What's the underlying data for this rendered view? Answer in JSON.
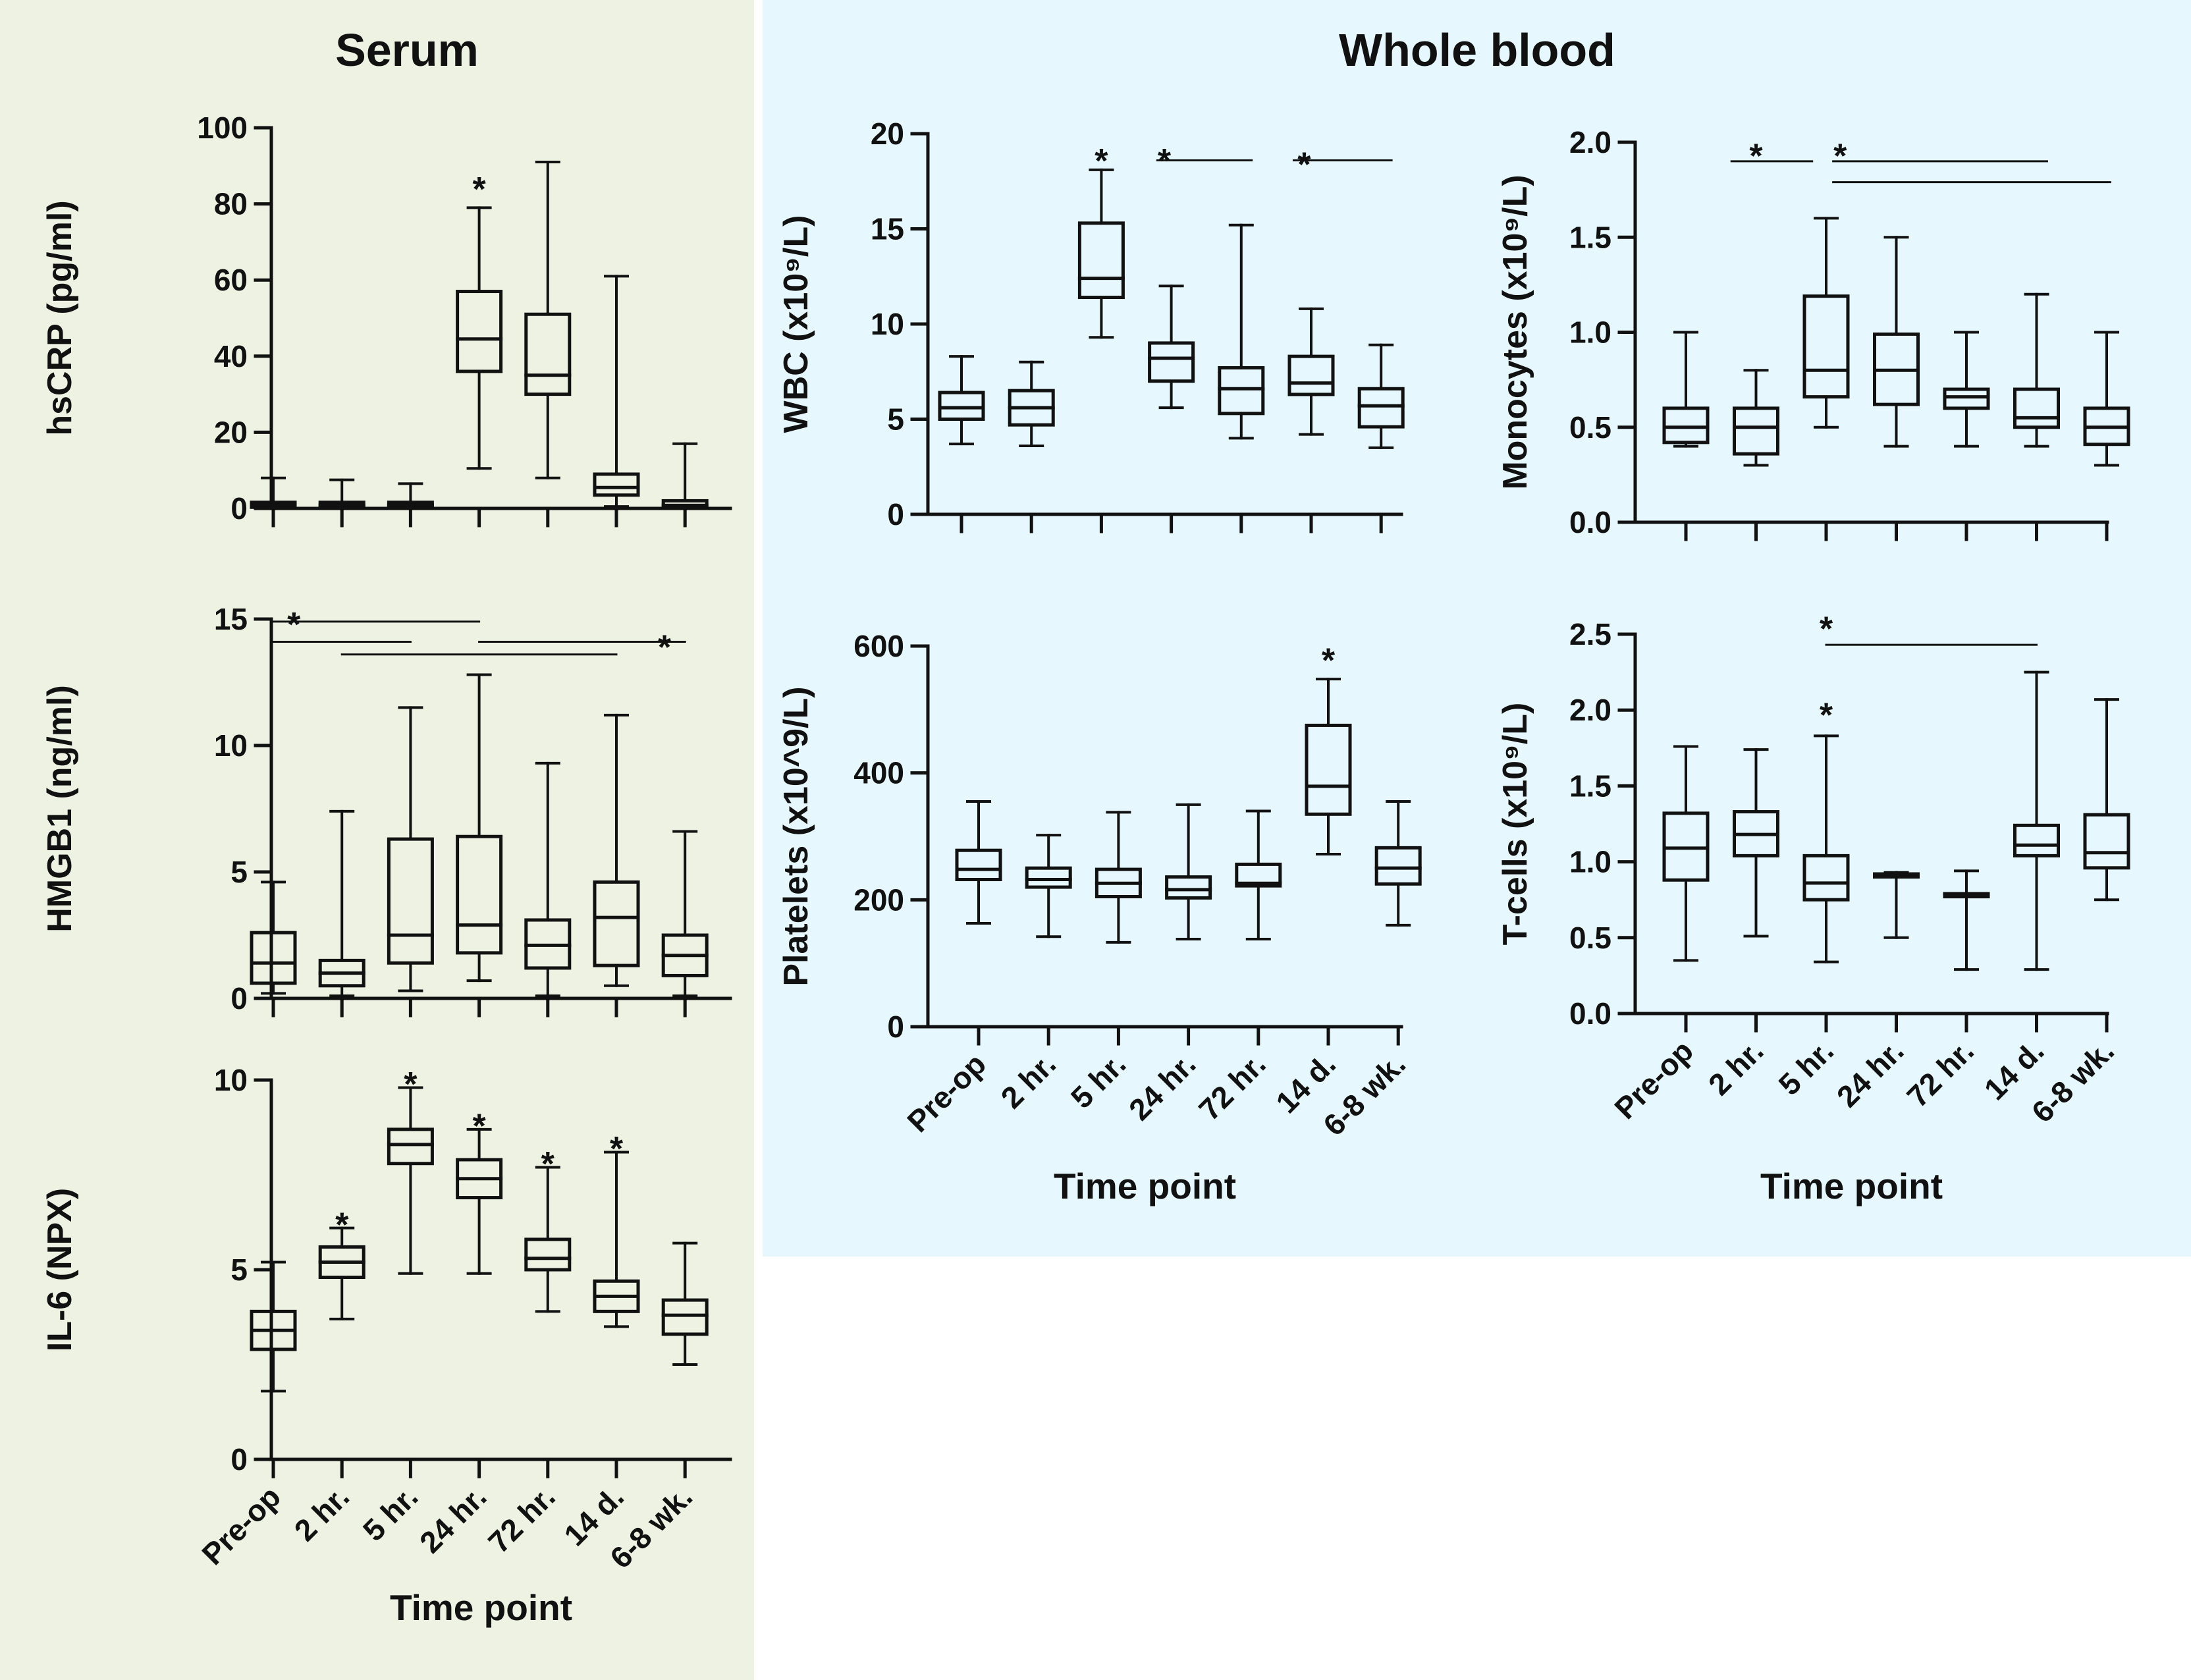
{
  "panels": {
    "serum": {
      "title": "Serum",
      "color": "#edf2e3"
    },
    "whole_blood": {
      "title": "Whole blood",
      "color": "#e6f8fd"
    }
  },
  "chart_data": [
    {
      "id": "hscrp",
      "type": "box",
      "panel": "serum",
      "ylabel": "hsCRP (pg/ml)",
      "xlabel": "",
      "ylim": [
        0,
        100
      ],
      "yticks": [
        0,
        20,
        40,
        60,
        80,
        100
      ],
      "ytick_labels": [
        "0",
        "20",
        "40",
        "60",
        "80",
        "100"
      ],
      "categories": [
        "Pre-op",
        "2 hr.",
        "5 hr.",
        "24 hr.",
        "72 hr.",
        "14 d.",
        "6-8 wk."
      ],
      "show_category_labels": false,
      "boxes": [
        {
          "min": 0,
          "q1": 0.3,
          "median": 0.8,
          "q3": 1.6,
          "max": 8
        },
        {
          "min": 0,
          "q1": 0.3,
          "median": 0.8,
          "q3": 1.6,
          "max": 7.5
        },
        {
          "min": 0,
          "q1": 0.3,
          "median": 0.8,
          "q3": 1.6,
          "max": 6.5
        },
        {
          "min": 10.5,
          "q1": 36,
          "median": 44.5,
          "q3": 57,
          "max": 79
        },
        {
          "min": 8,
          "q1": 30,
          "median": 35,
          "q3": 51,
          "max": 91
        },
        {
          "min": 0.5,
          "q1": 3.5,
          "median": 5.5,
          "q3": 9,
          "max": 61
        },
        {
          "min": 0,
          "q1": 0.3,
          "median": 0.8,
          "q3": 2,
          "max": 17
        }
      ],
      "stars": [
        {
          "index": 3,
          "value": 86,
          "text": "*"
        }
      ],
      "brackets": []
    },
    {
      "id": "hmgb1",
      "type": "box",
      "panel": "serum",
      "ylabel": "HMGB1 (ng/ml)",
      "xlabel": "",
      "ylim": [
        0,
        15
      ],
      "yticks": [
        0,
        5,
        10,
        15
      ],
      "ytick_labels": [
        "0",
        "5",
        "10",
        "15"
      ],
      "categories": [
        "Pre-op",
        "2 hr.",
        "5 hr.",
        "24 hr.",
        "72 hr.",
        "14 d.",
        "6-8 wk."
      ],
      "show_category_labels": false,
      "boxes": [
        {
          "min": 0.2,
          "q1": 0.6,
          "median": 1.4,
          "q3": 2.6,
          "max": 4.6
        },
        {
          "min": 0.1,
          "q1": 0.5,
          "median": 1,
          "q3": 1.5,
          "max": 7.4
        },
        {
          "min": 0.3,
          "q1": 1.4,
          "median": 2.5,
          "q3": 6.3,
          "max": 11.5
        },
        {
          "min": 0.7,
          "q1": 1.8,
          "median": 2.9,
          "q3": 6.4,
          "max": 12.8
        },
        {
          "min": 0.1,
          "q1": 1.2,
          "median": 2.1,
          "q3": 3.1,
          "max": 9.3
        },
        {
          "min": 0.5,
          "q1": 1.3,
          "median": 3.2,
          "q3": 4.6,
          "max": 11.2
        },
        {
          "min": 0.1,
          "q1": 0.9,
          "median": 1.7,
          "q3": 2.5,
          "max": 6.6
        }
      ],
      "stars": [
        {
          "index": 0.3,
          "value": 15.1,
          "text": "*"
        },
        {
          "index": 5.7,
          "value": 14.2,
          "text": "*"
        }
      ],
      "brackets": [
        {
          "from": 0,
          "to": 3,
          "value": 14.9
        },
        {
          "from": 0,
          "to": 2,
          "value": 14.1
        },
        {
          "from": 3,
          "to": 6,
          "value": 14.1
        },
        {
          "from": 1,
          "to": 5,
          "value": 13.6
        }
      ]
    },
    {
      "id": "il6",
      "type": "box",
      "panel": "serum",
      "ylabel": "IL-6 (NPX)",
      "xlabel": "Time point",
      "ylim": [
        0,
        10
      ],
      "yticks": [
        0,
        5,
        10
      ],
      "ytick_labels": [
        "0",
        "5",
        "10"
      ],
      "categories": [
        "Pre-op",
        "2 hr.",
        "5 hr.",
        "24 hr.",
        "72 hr.",
        "14 d.",
        "6-8 wk."
      ],
      "show_category_labels": true,
      "boxes": [
        {
          "min": 1.8,
          "q1": 2.9,
          "median": 3.4,
          "q3": 3.9,
          "max": 5.2
        },
        {
          "min": 3.7,
          "q1": 4.8,
          "median": 5.2,
          "q3": 5.6,
          "max": 6.1
        },
        {
          "min": 4.9,
          "q1": 7.8,
          "median": 8.3,
          "q3": 8.7,
          "max": 9.8
        },
        {
          "min": 4.9,
          "q1": 6.9,
          "median": 7.4,
          "q3": 7.9,
          "max": 8.7
        },
        {
          "min": 3.9,
          "q1": 5,
          "median": 5.3,
          "q3": 5.8,
          "max": 7.7
        },
        {
          "min": 3.5,
          "q1": 3.9,
          "median": 4.3,
          "q3": 4.7,
          "max": 8.1
        },
        {
          "min": 2.5,
          "q1": 3.3,
          "median": 3.8,
          "q3": 4.2,
          "max": 5.7
        }
      ],
      "stars": [
        {
          "index": 1,
          "value": 6.4,
          "text": "*"
        },
        {
          "index": 2,
          "value": 10.1,
          "text": "*"
        },
        {
          "index": 3,
          "value": 9.0,
          "text": "*"
        },
        {
          "index": 4,
          "value": 8.0,
          "text": "*"
        },
        {
          "index": 5,
          "value": 8.4,
          "text": "*"
        }
      ],
      "brackets": []
    },
    {
      "id": "wbc",
      "type": "box",
      "panel": "whole_blood",
      "ylabel": "WBC (x10⁹/L)",
      "xlabel": "",
      "ylim": [
        0,
        20
      ],
      "yticks": [
        0,
        5,
        10,
        15,
        20
      ],
      "ytick_labels": [
        "0",
        "5",
        "10",
        "15",
        "20"
      ],
      "categories": [
        "Pre-op",
        "2 hr.",
        "5 hr.",
        "24 hr.",
        "72 hr.",
        "14 d.",
        "6-8 wk."
      ],
      "show_category_labels": false,
      "boxes": [
        {
          "min": 3.7,
          "q1": 5,
          "median": 5.6,
          "q3": 6.4,
          "max": 8.3
        },
        {
          "min": 3.6,
          "q1": 4.7,
          "median": 5.6,
          "q3": 6.5,
          "max": 8
        },
        {
          "min": 9.3,
          "q1": 11.4,
          "median": 12.4,
          "q3": 15.3,
          "max": 18.1
        },
        {
          "min": 5.6,
          "q1": 7,
          "median": 8.2,
          "q3": 9,
          "max": 12
        },
        {
          "min": 4,
          "q1": 5.3,
          "median": 6.6,
          "q3": 7.7,
          "max": 15.2
        },
        {
          "min": 4.2,
          "q1": 6.3,
          "median": 6.9,
          "q3": 8.3,
          "max": 10.8
        },
        {
          "min": 3.5,
          "q1": 4.6,
          "median": 5.7,
          "q3": 6.6,
          "max": 8.9
        }
      ],
      "stars": [
        {
          "index": 2,
          "value": 19.0,
          "text": "*"
        },
        {
          "index": 2.9,
          "value": 19.0,
          "text": "*"
        },
        {
          "index": 4.9,
          "value": 18.8,
          "text": "*"
        }
      ],
      "brackets": [
        {
          "from": 2.8,
          "to": 4.15,
          "value": 18.6
        },
        {
          "from": 4.75,
          "to": 6.15,
          "value": 18.6
        }
      ]
    },
    {
      "id": "monocytes",
      "type": "box",
      "panel": "whole_blood",
      "ylabel": "Monocytes (x10⁹/L)",
      "xlabel": "",
      "ylim": [
        0,
        2
      ],
      "yticks": [
        0,
        0.5,
        1,
        1.5,
        2
      ],
      "ytick_labels": [
        "0.0",
        "0.5",
        "1.0",
        "1.5",
        "2.0"
      ],
      "categories": [
        "Pre-op",
        "2 hr.",
        "5 hr.",
        "24 hr.",
        "72 hr.",
        "14 d.",
        "6-8 wk."
      ],
      "show_category_labels": false,
      "boxes": [
        {
          "min": 0.4,
          "q1": 0.42,
          "median": 0.5,
          "q3": 0.6,
          "max": 1
        },
        {
          "min": 0.3,
          "q1": 0.36,
          "median": 0.5,
          "q3": 0.6,
          "max": 0.8
        },
        {
          "min": 0.5,
          "q1": 0.66,
          "median": 0.8,
          "q3": 1.19,
          "max": 1.6
        },
        {
          "min": 0.4,
          "q1": 0.62,
          "median": 0.8,
          "q3": 0.99,
          "max": 1.5
        },
        {
          "min": 0.4,
          "q1": 0.6,
          "median": 0.66,
          "q3": 0.7,
          "max": 1
        },
        {
          "min": 0.4,
          "q1": 0.5,
          "median": 0.55,
          "q3": 0.7,
          "max": 1.2
        },
        {
          "min": 0.3,
          "q1": 0.41,
          "median": 0.5,
          "q3": 0.6,
          "max": 1
        }
      ],
      "stars": [
        {
          "index": 1,
          "value": 1.97,
          "text": "*"
        },
        {
          "index": 2.2,
          "value": 1.97,
          "text": "*"
        }
      ],
      "brackets": [
        {
          "from": 0.65,
          "to": 1.8,
          "value": 1.9
        },
        {
          "from": 2.1,
          "to": 5.15,
          "value": 1.9
        },
        {
          "from": 2.1,
          "to": 6.05,
          "value": 1.79
        }
      ]
    },
    {
      "id": "platelets",
      "type": "box",
      "panel": "whole_blood",
      "ylabel": "Platelets (x10^9/L)",
      "xlabel": "Time point",
      "ylim": [
        0,
        600
      ],
      "yticks": [
        0,
        200,
        400,
        600
      ],
      "ytick_labels": [
        "0",
        "200",
        "400",
        "600"
      ],
      "categories": [
        "Pre-op",
        "2 hr.",
        "5 hr.",
        "24 hr.",
        "72 hr.",
        "14 d.",
        "6-8 wk."
      ],
      "show_category_labels": true,
      "boxes": [
        {
          "min": 163,
          "q1": 232,
          "median": 248,
          "q3": 278,
          "max": 355
        },
        {
          "min": 142,
          "q1": 220,
          "median": 232,
          "q3": 250,
          "max": 302
        },
        {
          "min": 133,
          "q1": 205,
          "median": 226,
          "q3": 248,
          "max": 338
        },
        {
          "min": 138,
          "q1": 203,
          "median": 216,
          "q3": 236,
          "max": 350
        },
        {
          "min": 138,
          "q1": 222,
          "median": 226,
          "q3": 256,
          "max": 340
        },
        {
          "min": 272,
          "q1": 335,
          "median": 379,
          "q3": 475,
          "max": 548
        },
        {
          "min": 160,
          "q1": 225,
          "median": 250,
          "q3": 282,
          "max": 355
        }
      ],
      "stars": [
        {
          "index": 5,
          "value": 590,
          "text": "*"
        }
      ],
      "brackets": []
    },
    {
      "id": "tcells",
      "type": "box",
      "panel": "whole_blood",
      "ylabel": "T-cells (x10⁹/L)",
      "xlabel": "Time point",
      "ylim": [
        0,
        2.5
      ],
      "yticks": [
        0,
        0.5,
        1,
        1.5,
        2,
        2.5
      ],
      "ytick_labels": [
        "0.0",
        "0.5",
        "1.0",
        "1.5",
        "2.0",
        "2.5"
      ],
      "categories": [
        "Pre-op",
        "2 hr.",
        "5 hr.",
        "24 hr.",
        "72 hr.",
        "14 d.",
        "6-8 wk."
      ],
      "show_category_labels": true,
      "boxes": [
        {
          "min": 0.35,
          "q1": 0.88,
          "median": 1.09,
          "q3": 1.32,
          "max": 1.76
        },
        {
          "min": 0.51,
          "q1": 1.04,
          "median": 1.18,
          "q3": 1.33,
          "max": 1.74
        },
        {
          "min": 0.34,
          "q1": 0.75,
          "median": 0.86,
          "q3": 1.04,
          "max": 1.83
        },
        {
          "min": 0.5,
          "q1": 0.9,
          "median": 0.91,
          "q3": 0.92,
          "max": 0.93
        },
        {
          "min": 0.29,
          "q1": 0.77,
          "median": 0.78,
          "q3": 0.79,
          "max": 0.94
        },
        {
          "min": 0.29,
          "q1": 1.04,
          "median": 1.11,
          "q3": 1.24,
          "max": 2.25
        },
        {
          "min": 0.75,
          "q1": 0.96,
          "median": 1.06,
          "q3": 1.31,
          "max": 2.07
        }
      ],
      "stars": [
        {
          "index": 2,
          "value": 2.02,
          "text": "*"
        },
        {
          "index": 2,
          "value": 2.59,
          "text": "*"
        }
      ],
      "brackets": [
        {
          "from": 2,
          "to": 5,
          "value": 2.43
        }
      ]
    }
  ]
}
